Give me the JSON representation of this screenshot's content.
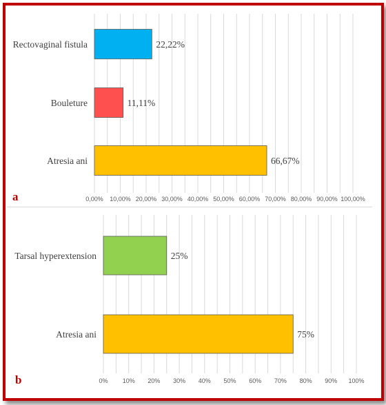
{
  "chart_data": [
    {
      "type": "bar",
      "orientation": "horizontal",
      "panel_label": "a",
      "categories": [
        "Rectovaginal fistula",
        "Bouleture",
        "Atresia ani"
      ],
      "values": [
        22.22,
        11.11,
        66.67
      ],
      "value_labels": [
        "22,22%",
        "11,11%",
        "66,67%"
      ],
      "colors": [
        "#00b0f0",
        "#ff5050",
        "#ffc000"
      ],
      "xlim": [
        0,
        100
      ],
      "xticks": [
        0,
        10,
        20,
        30,
        40,
        50,
        60,
        70,
        80,
        90,
        100
      ],
      "xtick_labels": [
        "0,00%",
        "10,00%",
        "20,00%",
        "30,00%",
        "40,00%",
        "50,00%",
        "60,00%",
        "70,00%",
        "80,00%",
        "90,00%",
        "100,00%"
      ],
      "minor_grid_step": 5,
      "grid": true,
      "title": "",
      "xlabel": "",
      "ylabel": ""
    },
    {
      "type": "bar",
      "orientation": "horizontal",
      "panel_label": "b",
      "categories": [
        "Tarsal hyperextension",
        "Atresia ani"
      ],
      "values": [
        25,
        75
      ],
      "value_labels": [
        "25%",
        "75%"
      ],
      "colors": [
        "#92d050",
        "#ffc000"
      ],
      "xlim": [
        0,
        100
      ],
      "xticks": [
        0,
        10,
        20,
        30,
        40,
        50,
        60,
        70,
        80,
        90,
        100
      ],
      "xtick_labels": [
        "0%",
        "10%",
        "20%",
        "30%",
        "40%",
        "50%",
        "60%",
        "70%",
        "80%",
        "90%",
        "100%"
      ],
      "minor_grid_step": 5,
      "grid": true,
      "title": "",
      "xlabel": "",
      "ylabel": ""
    }
  ]
}
